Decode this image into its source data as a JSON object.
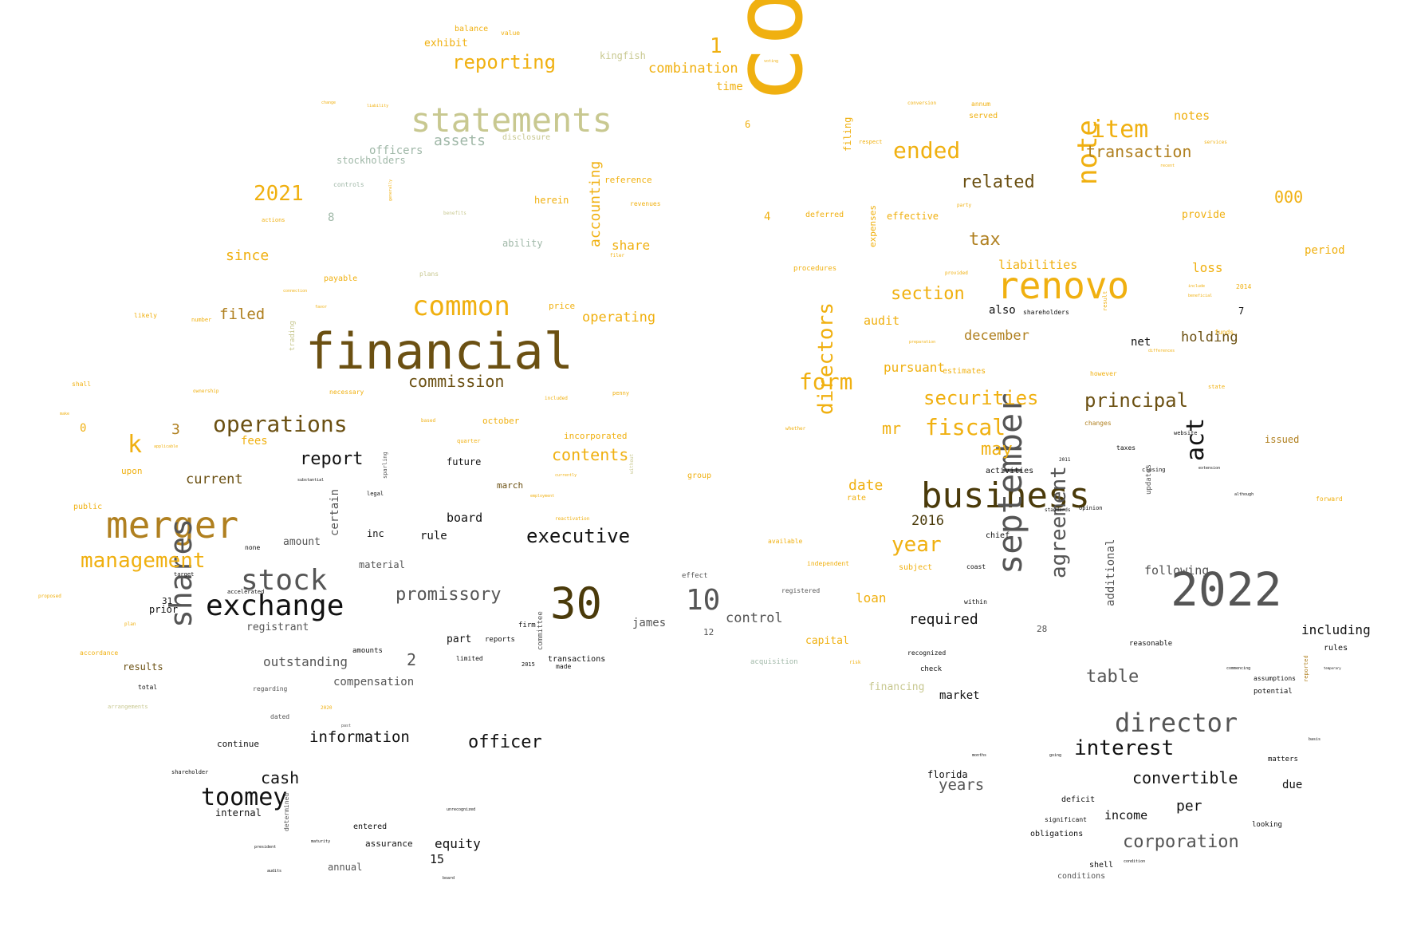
{
  "palette": {
    "gold": "#f0b010",
    "dark_gold": "#b08020",
    "brown": "#6b5012",
    "dark_brown": "#4a3a0a",
    "olive": "#c8c890",
    "sage": "#a0b8a8",
    "gray": "#555555",
    "near_black": "#111111"
  },
  "words": [
    {
      "text": "company"
    },
    {
      "text": "financial"
    },
    {
      "text": "merger"
    },
    {
      "text": "statements"
    },
    {
      "text": "business"
    },
    {
      "text": "2022"
    },
    {
      "text": "renovo"
    },
    {
      "text": "september"
    },
    {
      "text": "30"
    },
    {
      "text": "stock"
    },
    {
      "text": "exchange"
    },
    {
      "text": "shares"
    },
    {
      "text": "common"
    },
    {
      "text": "toomey"
    },
    {
      "text": "operations"
    },
    {
      "text": "director"
    },
    {
      "text": "note"
    },
    {
      "text": "item"
    },
    {
      "text": "ended"
    },
    {
      "text": "management"
    },
    {
      "text": "fiscal"
    },
    {
      "text": "form"
    },
    {
      "text": "securities"
    },
    {
      "text": "principal"
    },
    {
      "text": "interest"
    },
    {
      "text": "executive"
    },
    {
      "text": "agreement"
    },
    {
      "text": "directors"
    },
    {
      "text": "act"
    },
    {
      "text": "year"
    },
    {
      "text": "10"
    },
    {
      "text": "commission"
    },
    {
      "text": "2021"
    },
    {
      "text": "reporting"
    },
    {
      "text": "promissory"
    },
    {
      "text": "related"
    },
    {
      "text": "officer"
    },
    {
      "text": "table"
    },
    {
      "text": "transaction"
    },
    {
      "text": "section"
    },
    {
      "text": "k"
    },
    {
      "text": "report"
    },
    {
      "text": "tax"
    },
    {
      "text": "convertible"
    },
    {
      "text": "corporation"
    },
    {
      "text": "information"
    },
    {
      "text": "contents"
    },
    {
      "text": "accounting"
    },
    {
      "text": "assets"
    },
    {
      "text": "cash"
    },
    {
      "text": "december"
    },
    {
      "text": "may"
    },
    {
      "text": "combination"
    },
    {
      "text": "operating"
    },
    {
      "text": "since"
    },
    {
      "text": "filed"
    },
    {
      "text": "required"
    },
    {
      "text": "holding"
    },
    {
      "text": "liabilities"
    },
    {
      "text": "1"
    },
    {
      "text": "000"
    },
    {
      "text": "notes"
    },
    {
      "text": "current"
    },
    {
      "text": "mr"
    },
    {
      "text": "date"
    },
    {
      "text": "pursuant"
    },
    {
      "text": "control"
    },
    {
      "text": "years"
    },
    {
      "text": "2016"
    },
    {
      "text": "loan"
    },
    {
      "text": "audit"
    },
    {
      "text": "equity"
    },
    {
      "text": "outstanding"
    },
    {
      "text": "share"
    },
    {
      "text": "board"
    },
    {
      "text": "including"
    },
    {
      "text": "following"
    },
    {
      "text": "loss"
    },
    {
      "text": "compensation"
    },
    {
      "text": "per"
    },
    {
      "text": "officers"
    },
    {
      "text": "stockholders"
    },
    {
      "text": "kingfish"
    },
    {
      "text": "exhibit"
    },
    {
      "text": "time"
    },
    {
      "text": "capital"
    },
    {
      "text": "fees"
    },
    {
      "text": "amount"
    },
    {
      "text": "certain"
    },
    {
      "text": "rule"
    },
    {
      "text": "inc"
    },
    {
      "text": "material"
    },
    {
      "text": "james"
    },
    {
      "text": "part"
    },
    {
      "text": "registrant"
    },
    {
      "text": "financing"
    },
    {
      "text": "market"
    },
    {
      "text": "income"
    },
    {
      "text": "additional"
    },
    {
      "text": "provide"
    },
    {
      "text": "effective"
    },
    {
      "text": "period"
    },
    {
      "text": "also"
    },
    {
      "text": "net"
    },
    {
      "text": "2"
    },
    {
      "text": "3"
    },
    {
      "text": "4"
    },
    {
      "text": "6"
    },
    {
      "text": "7"
    },
    {
      "text": "8"
    },
    {
      "text": "15"
    },
    {
      "text": "31"
    },
    {
      "text": "prior"
    },
    {
      "text": "results"
    },
    {
      "text": "issued"
    },
    {
      "text": "due"
    },
    {
      "text": "future"
    },
    {
      "text": "march"
    },
    {
      "text": "october"
    },
    {
      "text": "filing"
    },
    {
      "text": "ability"
    },
    {
      "text": "herein"
    },
    {
      "text": "reference"
    },
    {
      "text": "price"
    },
    {
      "text": "incorporated"
    },
    {
      "text": "annual"
    },
    {
      "text": "assurance"
    },
    {
      "text": "entered"
    },
    {
      "text": "internal"
    },
    {
      "text": "continue"
    },
    {
      "text": "florida"
    },
    {
      "text": "12"
    },
    {
      "text": "28"
    },
    {
      "text": "upon"
    },
    {
      "text": "0"
    },
    {
      "text": "public"
    },
    {
      "text": "balance"
    },
    {
      "text": "value"
    },
    {
      "text": "expenses"
    },
    {
      "text": "payable"
    },
    {
      "text": "disclosure"
    },
    {
      "text": "updates"
    },
    {
      "text": "rules"
    },
    {
      "text": "deferred"
    },
    {
      "text": "procedures"
    },
    {
      "text": "shareholders"
    },
    {
      "text": "estimates"
    },
    {
      "text": "independent"
    },
    {
      "text": "registered"
    },
    {
      "text": "subject"
    },
    {
      "text": "chief"
    },
    {
      "text": "activities"
    },
    {
      "text": "reasonable"
    },
    {
      "text": "potential"
    },
    {
      "text": "assumptions"
    },
    {
      "text": "matters"
    },
    {
      "text": "obligations"
    },
    {
      "text": "conditions"
    },
    {
      "text": "shell"
    },
    {
      "text": "deficit"
    },
    {
      "text": "significant"
    },
    {
      "text": "looking"
    },
    {
      "text": "recognized"
    },
    {
      "text": "check"
    },
    {
      "text": "within"
    },
    {
      "text": "coast"
    },
    {
      "text": "effect"
    },
    {
      "text": "acquisition"
    },
    {
      "text": "committee"
    },
    {
      "text": "transactions"
    },
    {
      "text": "made"
    },
    {
      "text": "limited"
    },
    {
      "text": "reports"
    },
    {
      "text": "firm"
    },
    {
      "text": "amounts"
    },
    {
      "text": "regarding"
    },
    {
      "text": "dated"
    },
    {
      "text": "total"
    },
    {
      "text": "shareholder"
    },
    {
      "text": "determined"
    },
    {
      "text": "none"
    },
    {
      "text": "target"
    },
    {
      "text": "accelerated"
    },
    {
      "text": "group"
    },
    {
      "text": "rate"
    },
    {
      "text": "available"
    },
    {
      "text": "served"
    },
    {
      "text": "annum"
    },
    {
      "text": "changes"
    },
    {
      "text": "however"
    },
    {
      "text": "taxes"
    },
    {
      "text": "closing"
    },
    {
      "text": "website"
    },
    {
      "text": "funds"
    },
    {
      "text": "state"
    },
    {
      "text": "forward"
    },
    {
      "text": "standards"
    },
    {
      "text": "opinion"
    },
    {
      "text": "2014"
    },
    {
      "text": "2015"
    },
    {
      "text": "2020"
    },
    {
      "text": "2011"
    },
    {
      "text": "controls"
    },
    {
      "text": "actions"
    },
    {
      "text": "benefits"
    },
    {
      "text": "plans"
    },
    {
      "text": "revenues"
    },
    {
      "text": "filer"
    },
    {
      "text": "necessary"
    },
    {
      "text": "ownership"
    },
    {
      "text": "penny"
    },
    {
      "text": "quarter"
    },
    {
      "text": "based"
    },
    {
      "text": "included"
    },
    {
      "text": "accordance"
    },
    {
      "text": "arrangements"
    },
    {
      "text": "shall"
    },
    {
      "text": "likely"
    },
    {
      "text": "number"
    },
    {
      "text": "proposed"
    },
    {
      "text": "plan"
    },
    {
      "text": "trading"
    },
    {
      "text": "sparling"
    },
    {
      "text": "legal"
    },
    {
      "text": "substantial"
    },
    {
      "text": "whether"
    },
    {
      "text": "respect"
    },
    {
      "text": "conversion"
    },
    {
      "text": "party"
    },
    {
      "text": "provided"
    },
    {
      "text": "preparation"
    },
    {
      "text": "services"
    },
    {
      "text": "recent"
    },
    {
      "text": "include"
    },
    {
      "text": "beneficial"
    },
    {
      "text": "result"
    },
    {
      "text": "differences"
    },
    {
      "text": "extension"
    },
    {
      "text": "although"
    },
    {
      "text": "commencing"
    },
    {
      "text": "temporary"
    },
    {
      "text": "basis"
    },
    {
      "text": "reported"
    },
    {
      "text": "going"
    },
    {
      "text": "months"
    },
    {
      "text": "condition"
    },
    {
      "text": "maturity"
    },
    {
      "text": "president"
    },
    {
      "text": "audits"
    },
    {
      "text": "past"
    },
    {
      "text": "change"
    },
    {
      "text": "liability"
    },
    {
      "text": "voting"
    },
    {
      "text": "make"
    },
    {
      "text": "applicable"
    },
    {
      "text": "reactivation"
    },
    {
      "text": "employment"
    },
    {
      "text": "currently"
    },
    {
      "text": "without"
    },
    {
      "text": "risk"
    },
    {
      "text": "connection"
    },
    {
      "text": "generally"
    },
    {
      "text": "favor"
    },
    {
      "text": "unrecognized"
    },
    {
      "text": "board2"
    }
  ]
}
